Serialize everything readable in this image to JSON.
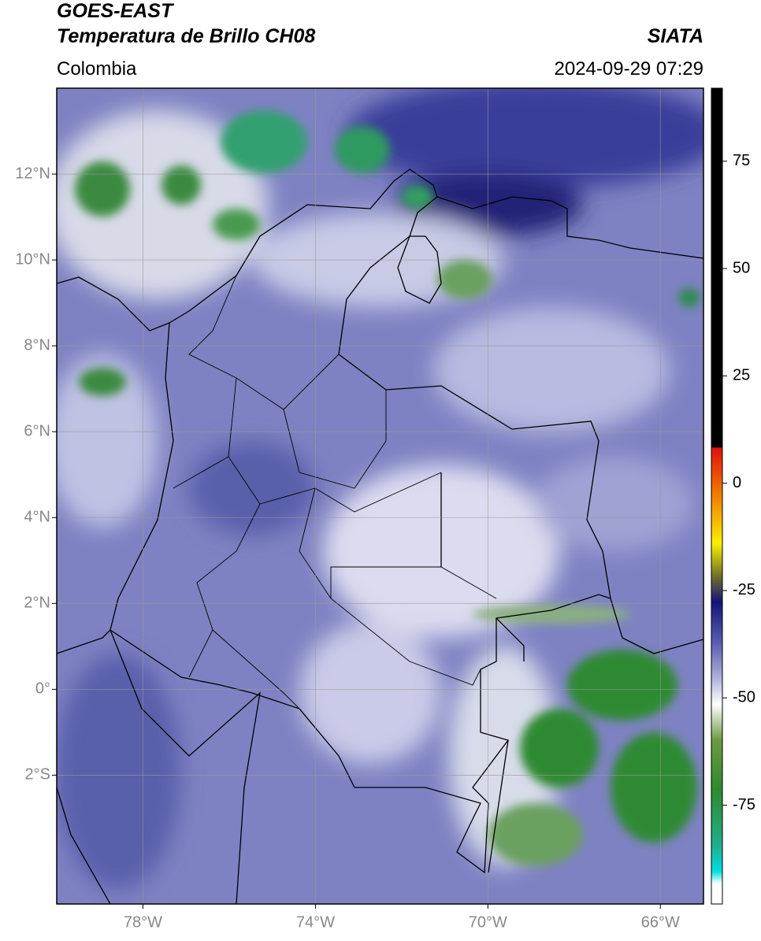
{
  "header": {
    "satellite": "GOES-EAST",
    "product": "Temperatura de Brillo CH08",
    "source": "SIATA",
    "region": "Colombia",
    "datetime": "2024-09-29 07:29"
  },
  "map": {
    "xlim": [
      -80,
      -65
    ],
    "ylim": [
      -5,
      14
    ],
    "xticks": [
      {
        "value": -78,
        "label": "78°W"
      },
      {
        "value": -74,
        "label": "74°W"
      },
      {
        "value": -70,
        "label": "70°W"
      },
      {
        "value": -66,
        "label": "66°W"
      }
    ],
    "yticks": [
      {
        "value": 12,
        "label": "12°N"
      },
      {
        "value": 10,
        "label": "10°N"
      },
      {
        "value": 8,
        "label": "8°N"
      },
      {
        "value": 6,
        "label": "6°N"
      },
      {
        "value": 4,
        "label": "4°N"
      },
      {
        "value": 2,
        "label": "2°N"
      },
      {
        "value": 0,
        "label": "0°"
      },
      {
        "value": -2,
        "label": "2°S"
      }
    ],
    "grid": true
  },
  "colorbar": {
    "lim": [
      -98,
      92
    ],
    "ticks": [
      75,
      50,
      25,
      0,
      -25,
      -50,
      -75
    ]
  }
}
